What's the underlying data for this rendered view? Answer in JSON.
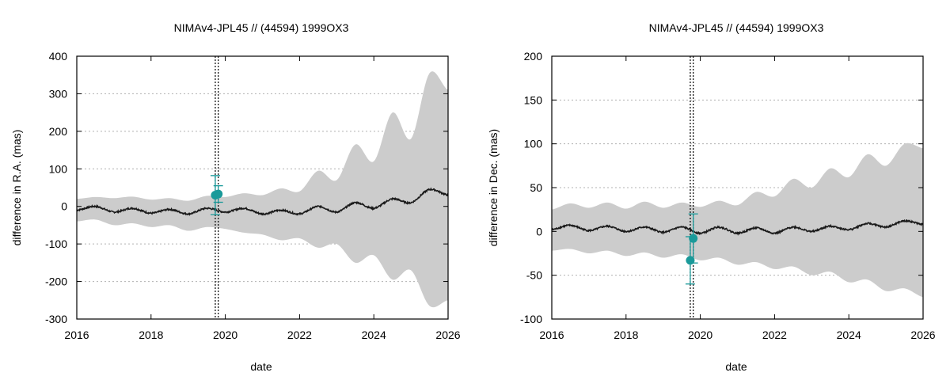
{
  "chart_data": [
    {
      "type": "line",
      "title": "NIMAv4-JPL45 // (44594) 1999OX3",
      "xlabel": "date",
      "ylabel": "difference in R.A. (mas)",
      "xlim": [
        2016,
        2026
      ],
      "ylim": [
        -300,
        400
      ],
      "xticks": [
        2016,
        2018,
        2020,
        2022,
        2024,
        2026
      ],
      "yticks": [
        -300,
        -200,
        -100,
        0,
        100,
        200,
        300,
        400
      ],
      "grid": "horizontal dotted",
      "vlines": [
        2019.73,
        2019.81
      ],
      "colors": {
        "band": "#cccccc",
        "line": "#1a1a1a",
        "points": "#1a9a9a",
        "vline": "#000000"
      },
      "series": [
        {
          "kind": "uncertainty-band",
          "x": [
            2016.0,
            2016.5,
            2017.0,
            2017.5,
            2018.0,
            2018.5,
            2019.0,
            2019.5,
            2020.0,
            2020.5,
            2021.0,
            2021.5,
            2022.0,
            2022.5,
            2023.0,
            2023.5,
            2024.0,
            2024.5,
            2025.0,
            2025.5,
            2026.0
          ],
          "upper": [
            20,
            25,
            22,
            26,
            18,
            22,
            15,
            28,
            25,
            35,
            30,
            48,
            40,
            95,
            70,
            165,
            120,
            250,
            180,
            355,
            310
          ],
          "lower": [
            -40,
            -35,
            -50,
            -45,
            -55,
            -50,
            -65,
            -55,
            -60,
            -70,
            -75,
            -90,
            -85,
            -110,
            -100,
            -150,
            -130,
            -195,
            -170,
            -265,
            -250
          ]
        },
        {
          "kind": "line",
          "x": [
            2016.0,
            2016.5,
            2017.0,
            2017.5,
            2018.0,
            2018.5,
            2019.0,
            2019.5,
            2020.0,
            2020.5,
            2021.0,
            2021.5,
            2022.0,
            2022.5,
            2023.0,
            2023.5,
            2024.0,
            2024.5,
            2025.0,
            2025.5,
            2026.0
          ],
          "values": [
            -10,
            0,
            -15,
            -5,
            -18,
            -8,
            -20,
            -5,
            -15,
            -5,
            -20,
            -10,
            -20,
            0,
            -15,
            10,
            -5,
            20,
            10,
            45,
            30
          ]
        },
        {
          "kind": "points",
          "x": [
            2019.73,
            2019.81
          ],
          "values": [
            30,
            33
          ],
          "err": [
            52,
            22
          ]
        }
      ]
    },
    {
      "type": "line",
      "title": "NIMAv4-JPL45 // (44594) 1999OX3",
      "xlabel": "date",
      "ylabel": "difference in Dec. (mas)",
      "xlim": [
        2016,
        2026
      ],
      "ylim": [
        -100,
        200
      ],
      "xticks": [
        2016,
        2018,
        2020,
        2022,
        2024,
        2026
      ],
      "yticks": [
        -100,
        -50,
        0,
        50,
        100,
        150,
        200
      ],
      "grid": "horizontal dotted",
      "vlines": [
        2019.73,
        2019.81
      ],
      "colors": {
        "band": "#cccccc",
        "line": "#1a1a1a",
        "points": "#1a9a9a",
        "vline": "#000000"
      },
      "series": [
        {
          "kind": "uncertainty-band",
          "x": [
            2016.0,
            2016.5,
            2017.0,
            2017.5,
            2018.0,
            2018.5,
            2019.0,
            2019.5,
            2020.0,
            2020.5,
            2021.0,
            2021.5,
            2022.0,
            2022.5,
            2023.0,
            2023.5,
            2024.0,
            2024.5,
            2025.0,
            2025.5,
            2026.0
          ],
          "upper": [
            25,
            32,
            27,
            33,
            26,
            34,
            27,
            33,
            28,
            35,
            30,
            45,
            40,
            60,
            50,
            72,
            62,
            88,
            75,
            100,
            95
          ],
          "lower": [
            -22,
            -20,
            -25,
            -22,
            -28,
            -24,
            -30,
            -26,
            -33,
            -30,
            -38,
            -35,
            -43,
            -40,
            -50,
            -46,
            -58,
            -55,
            -68,
            -65,
            -75
          ]
        },
        {
          "kind": "line",
          "x": [
            2016.0,
            2016.5,
            2017.0,
            2017.5,
            2018.0,
            2018.5,
            2019.0,
            2019.5,
            2020.0,
            2020.5,
            2021.0,
            2021.5,
            2022.0,
            2022.5,
            2023.0,
            2023.5,
            2024.0,
            2024.5,
            2025.0,
            2025.5,
            2026.0
          ],
          "values": [
            2,
            7,
            1,
            6,
            0,
            5,
            -1,
            5,
            -2,
            5,
            -2,
            4,
            -2,
            5,
            0,
            6,
            2,
            9,
            5,
            12,
            8
          ]
        },
        {
          "kind": "points",
          "x": [
            2019.73,
            2019.81
          ],
          "values": [
            -33,
            -8
          ],
          "err": [
            27,
            28
          ]
        }
      ]
    }
  ]
}
